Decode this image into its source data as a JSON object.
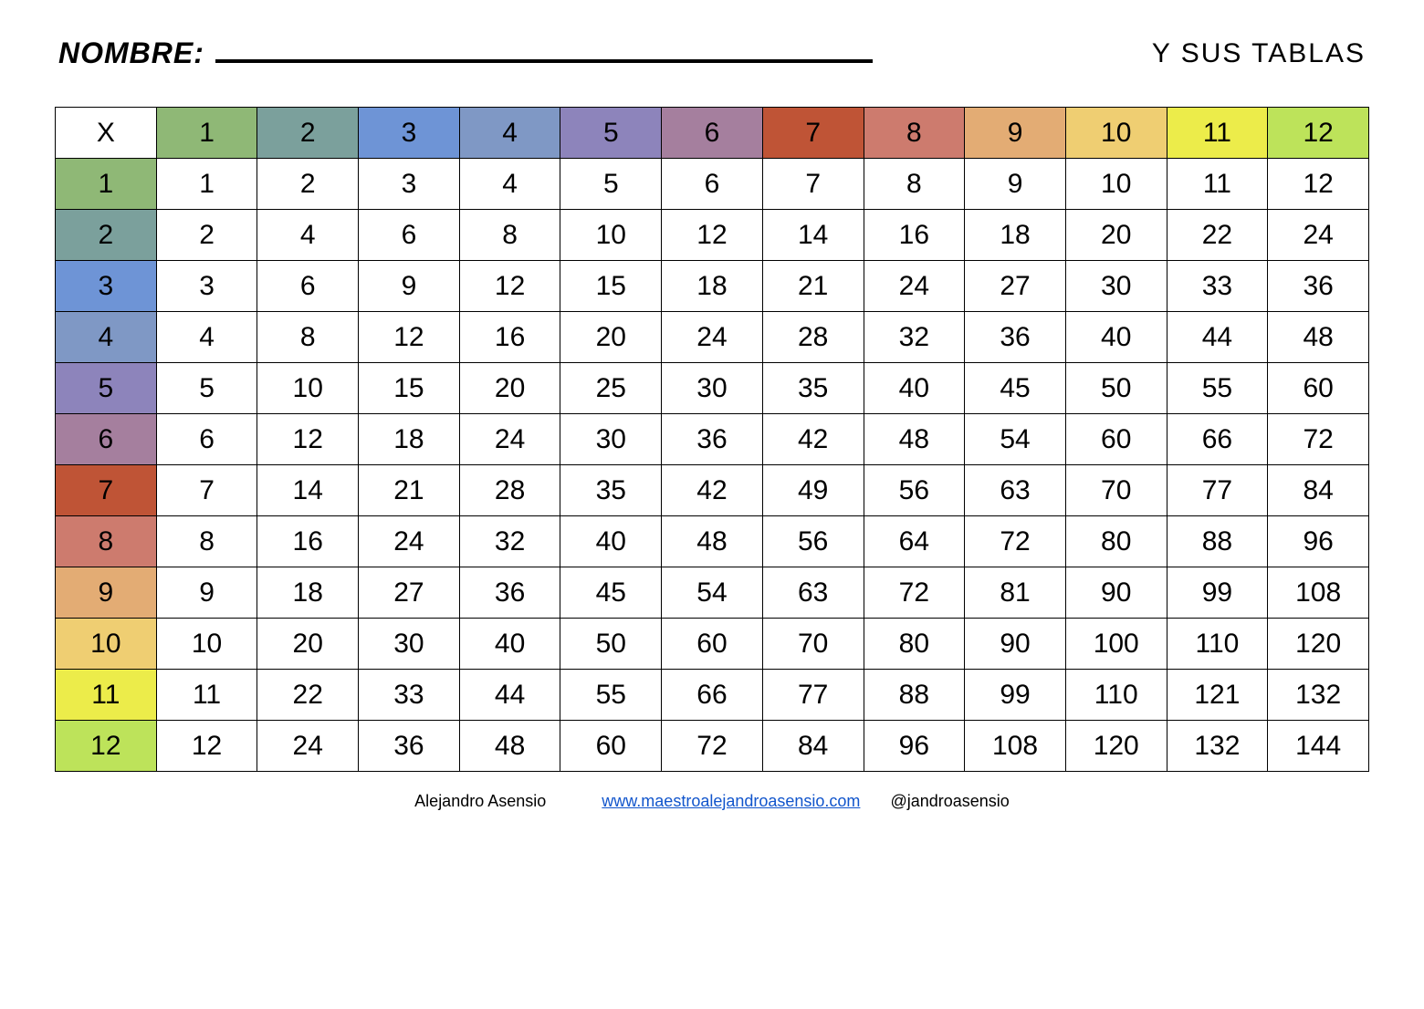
{
  "header": {
    "name_label": "NOMBRE:",
    "subtitle": "Y SUS TABLAS"
  },
  "table": {
    "type": "table",
    "corner_label": "X",
    "size": 12,
    "header_colors": [
      "#8fb876",
      "#7ba09c",
      "#6e94d6",
      "#7f98c5",
      "#8d84bb",
      "#a57f9e",
      "#bf5436",
      "#cd7b6e",
      "#e3ac74",
      "#efce72",
      "#ecec4a",
      "#bde35a"
    ],
    "columns": [
      "1",
      "2",
      "3",
      "4",
      "5",
      "6",
      "7",
      "8",
      "9",
      "10",
      "11",
      "12"
    ],
    "rows": [
      [
        "1",
        "2",
        "3",
        "4",
        "5",
        "6",
        "7",
        "8",
        "9",
        "10",
        "11",
        "12"
      ],
      [
        "2",
        "4",
        "6",
        "8",
        "10",
        "12",
        "14",
        "16",
        "18",
        "20",
        "22",
        "24"
      ],
      [
        "3",
        "6",
        "9",
        "12",
        "15",
        "18",
        "21",
        "24",
        "27",
        "30",
        "33",
        "36"
      ],
      [
        "4",
        "8",
        "12",
        "16",
        "20",
        "24",
        "28",
        "32",
        "36",
        "40",
        "44",
        "48"
      ],
      [
        "5",
        "10",
        "15",
        "20",
        "25",
        "30",
        "35",
        "40",
        "45",
        "50",
        "55",
        "60"
      ],
      [
        "6",
        "12",
        "18",
        "24",
        "30",
        "36",
        "42",
        "48",
        "54",
        "60",
        "66",
        "72"
      ],
      [
        "7",
        "14",
        "21",
        "28",
        "35",
        "42",
        "49",
        "56",
        "63",
        "70",
        "77",
        "84"
      ],
      [
        "8",
        "16",
        "24",
        "32",
        "40",
        "48",
        "56",
        "64",
        "72",
        "80",
        "88",
        "96"
      ],
      [
        "9",
        "18",
        "27",
        "36",
        "45",
        "54",
        "63",
        "72",
        "81",
        "90",
        "99",
        "108"
      ],
      [
        "10",
        "20",
        "30",
        "40",
        "50",
        "60",
        "70",
        "80",
        "90",
        "100",
        "110",
        "120"
      ],
      [
        "11",
        "22",
        "33",
        "44",
        "55",
        "66",
        "77",
        "88",
        "99",
        "110",
        "121",
        "132"
      ],
      [
        "12",
        "24",
        "36",
        "48",
        "60",
        "72",
        "84",
        "96",
        "108",
        "120",
        "132",
        "144"
      ]
    ],
    "cell_background": "#ffffff",
    "border_color": "#000000",
    "font_size": 30
  },
  "footer": {
    "author": "Alejandro Asensio",
    "link_text": "www.maestroalejandroasensio.com",
    "handle": "@jandroasensio"
  }
}
